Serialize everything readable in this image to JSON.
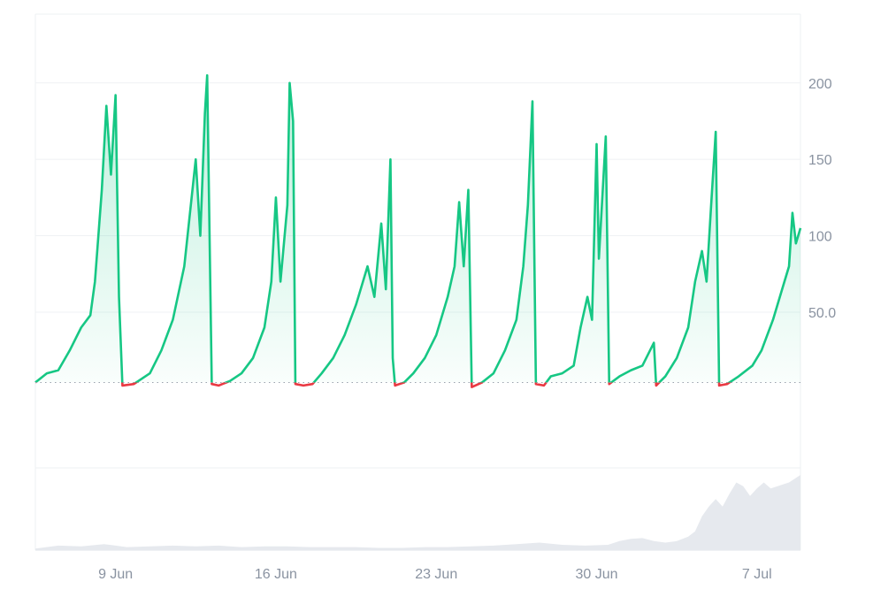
{
  "chart_data": {
    "type": "line",
    "title": "",
    "xlabel": "",
    "ylabel": "",
    "ylim": [
      -5,
      245
    ],
    "baseline": 4,
    "y_ticks": [
      "200",
      "150",
      "100",
      "50.0"
    ],
    "y_tick_values": [
      200,
      150,
      100,
      50
    ],
    "x_ticks": [
      "9 Jun",
      "16 Jun",
      "23 Jun",
      "30 Jun",
      "7 Jul"
    ],
    "x_tick_days": [
      9,
      16,
      23,
      30,
      37
    ],
    "x_range_days": [
      5.5,
      38.9
    ],
    "x_unit": "day of June 2024 (Jul 7 = 37)",
    "colors": {
      "above": "#16c784",
      "below": "#ea3943",
      "volume": "#e6e9ee",
      "grid": "#eff1f4"
    },
    "series": [
      {
        "points": [
          [
            5.5,
            4
          ],
          [
            6.0,
            10
          ],
          [
            6.5,
            12
          ],
          [
            7.0,
            25
          ],
          [
            7.5,
            40
          ],
          [
            7.9,
            48
          ],
          [
            8.1,
            70
          ],
          [
            8.4,
            130
          ],
          [
            8.6,
            185
          ],
          [
            8.8,
            140
          ],
          [
            9.0,
            192
          ],
          [
            9.15,
            60
          ],
          [
            9.3,
            2
          ],
          [
            9.8,
            3
          ],
          [
            10.5,
            10
          ],
          [
            11.0,
            25
          ],
          [
            11.5,
            45
          ],
          [
            12.0,
            80
          ],
          [
            12.5,
            150
          ],
          [
            12.7,
            100
          ],
          [
            12.9,
            180
          ],
          [
            13.0,
            205
          ],
          [
            13.2,
            3
          ],
          [
            13.5,
            2
          ],
          [
            14.0,
            5
          ],
          [
            14.5,
            10
          ],
          [
            15.0,
            20
          ],
          [
            15.5,
            40
          ],
          [
            15.8,
            70
          ],
          [
            16.0,
            125
          ],
          [
            16.2,
            70
          ],
          [
            16.5,
            120
          ],
          [
            16.6,
            200
          ],
          [
            16.75,
            175
          ],
          [
            16.85,
            3
          ],
          [
            17.2,
            2
          ],
          [
            17.6,
            3
          ],
          [
            18.0,
            10
          ],
          [
            18.5,
            20
          ],
          [
            19.0,
            35
          ],
          [
            19.5,
            55
          ],
          [
            20.0,
            80
          ],
          [
            20.3,
            60
          ],
          [
            20.6,
            108
          ],
          [
            20.8,
            65
          ],
          [
            21.0,
            150
          ],
          [
            21.1,
            20
          ],
          [
            21.2,
            2
          ],
          [
            21.6,
            4
          ],
          [
            22.0,
            10
          ],
          [
            22.5,
            20
          ],
          [
            23.0,
            35
          ],
          [
            23.5,
            60
          ],
          [
            23.8,
            80
          ],
          [
            24.0,
            122
          ],
          [
            24.2,
            80
          ],
          [
            24.4,
            130
          ],
          [
            24.55,
            1
          ],
          [
            25.0,
            4
          ],
          [
            25.5,
            10
          ],
          [
            26.0,
            25
          ],
          [
            26.5,
            45
          ],
          [
            26.8,
            80
          ],
          [
            27.0,
            120
          ],
          [
            27.2,
            188
          ],
          [
            27.35,
            3
          ],
          [
            27.7,
            2
          ],
          [
            28.0,
            8
          ],
          [
            28.5,
            10
          ],
          [
            29.0,
            15
          ],
          [
            29.3,
            40
          ],
          [
            29.6,
            60
          ],
          [
            29.8,
            45
          ],
          [
            30.0,
            160
          ],
          [
            30.1,
            85
          ],
          [
            30.4,
            165
          ],
          [
            30.55,
            3
          ],
          [
            31.0,
            8
          ],
          [
            31.5,
            12
          ],
          [
            32.0,
            15
          ],
          [
            32.5,
            30
          ],
          [
            32.6,
            2
          ],
          [
            33.0,
            8
          ],
          [
            33.5,
            20
          ],
          [
            34.0,
            40
          ],
          [
            34.3,
            70
          ],
          [
            34.6,
            90
          ],
          [
            34.8,
            70
          ],
          [
            35.0,
            120
          ],
          [
            35.2,
            168
          ],
          [
            35.35,
            2
          ],
          [
            35.7,
            3
          ],
          [
            36.2,
            8
          ],
          [
            36.8,
            15
          ],
          [
            37.2,
            25
          ],
          [
            37.7,
            45
          ],
          [
            38.1,
            65
          ],
          [
            38.4,
            80
          ],
          [
            38.55,
            115
          ],
          [
            38.7,
            95
          ],
          [
            38.9,
            105
          ]
        ]
      }
    ],
    "volume": {
      "points": [
        [
          5.5,
          0.02
        ],
        [
          6.5,
          0.06
        ],
        [
          7.5,
          0.05
        ],
        [
          8.5,
          0.08
        ],
        [
          9.5,
          0.04
        ],
        [
          10.5,
          0.05
        ],
        [
          11.5,
          0.06
        ],
        [
          12.5,
          0.05
        ],
        [
          13.5,
          0.06
        ],
        [
          14.5,
          0.04
        ],
        [
          15.5,
          0.05
        ],
        [
          16.5,
          0.05
        ],
        [
          17.5,
          0.04
        ],
        [
          18.5,
          0.04
        ],
        [
          19.5,
          0.04
        ],
        [
          20.5,
          0.03
        ],
        [
          21.5,
          0.03
        ],
        [
          22.5,
          0.04
        ],
        [
          23.5,
          0.04
        ],
        [
          24.5,
          0.05
        ],
        [
          25.5,
          0.06
        ],
        [
          26.5,
          0.08
        ],
        [
          27.5,
          0.1
        ],
        [
          28.5,
          0.07
        ],
        [
          29.5,
          0.06
        ],
        [
          30.5,
          0.07
        ],
        [
          31.0,
          0.12
        ],
        [
          31.5,
          0.15
        ],
        [
          32.0,
          0.16
        ],
        [
          32.5,
          0.12
        ],
        [
          33.0,
          0.1
        ],
        [
          33.5,
          0.12
        ],
        [
          34.0,
          0.18
        ],
        [
          34.3,
          0.25
        ],
        [
          34.6,
          0.45
        ],
        [
          34.9,
          0.58
        ],
        [
          35.2,
          0.68
        ],
        [
          35.5,
          0.58
        ],
        [
          35.8,
          0.75
        ],
        [
          36.1,
          0.9
        ],
        [
          36.4,
          0.85
        ],
        [
          36.7,
          0.72
        ],
        [
          37.0,
          0.82
        ],
        [
          37.3,
          0.9
        ],
        [
          37.6,
          0.82
        ],
        [
          38.0,
          0.86
        ],
        [
          38.4,
          0.9
        ],
        [
          38.7,
          0.96
        ],
        [
          38.9,
          1.0
        ]
      ]
    }
  }
}
